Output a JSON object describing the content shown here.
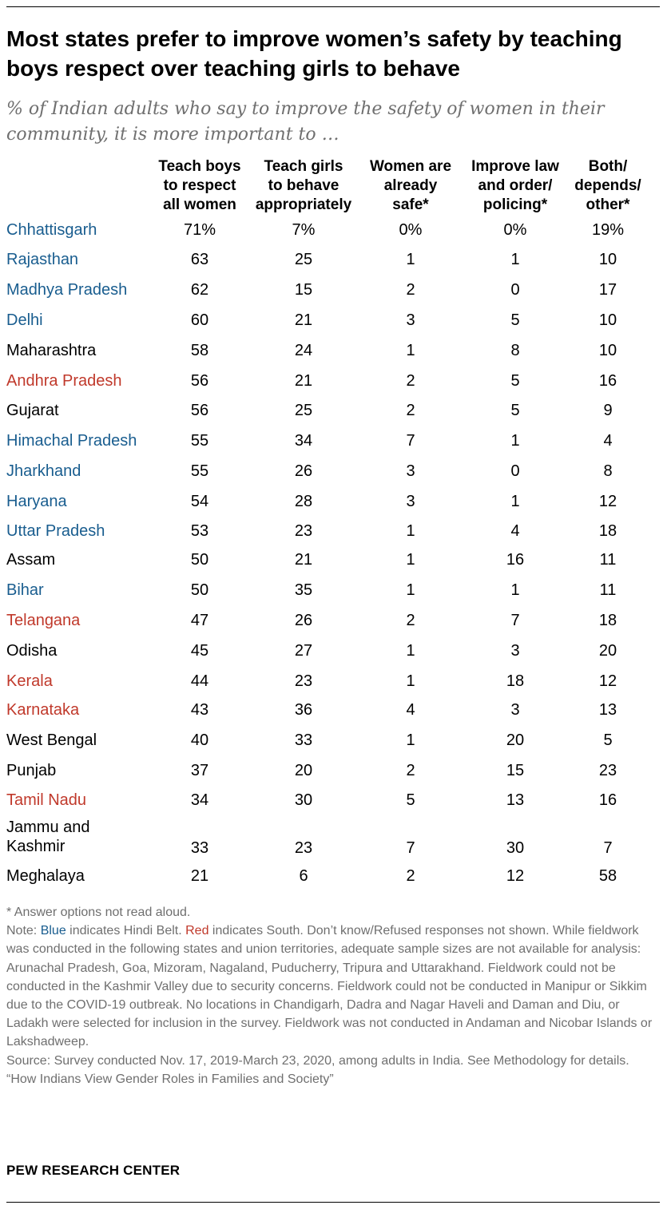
{
  "title": "Most states prefer to improve women’s safety by teaching boys respect over teaching girls to behave",
  "subtitle": "% of Indian adults who say to improve the safety of women in their community, it is more important to …",
  "colors": {
    "hindi_belt": "#195d8f",
    "south": "#c0392b",
    "other": "#000000",
    "note_text": "#6f6f6f"
  },
  "chart_data": {
    "type": "table",
    "columns": [
      "Teach boys\nto respect\nall women",
      "Teach girls\nto behave\nappropriately",
      "Women are\nalready\nsafe*",
      "Improve law\nand order/\npolicing*",
      "Both/\ndepends/\nother*"
    ],
    "rows": [
      {
        "label": "Chhattisgarh",
        "region": "hindi_belt",
        "display": [
          "71%",
          "7%",
          "0%",
          "0%",
          "19%"
        ],
        "values": [
          71,
          7,
          0,
          0,
          19
        ]
      },
      {
        "label": "Rajasthan",
        "region": "hindi_belt",
        "display": [
          "63",
          "25",
          "1",
          "1",
          "10"
        ],
        "values": [
          63,
          25,
          1,
          1,
          10
        ]
      },
      {
        "label": "Madhya Pradesh",
        "region": "hindi_belt",
        "display": [
          "62",
          "15",
          "2",
          "0",
          "17"
        ],
        "values": [
          62,
          15,
          2,
          0,
          17
        ]
      },
      {
        "label": "Delhi",
        "region": "hindi_belt",
        "display": [
          "60",
          "21",
          "3",
          "5",
          "10"
        ],
        "values": [
          60,
          21,
          3,
          5,
          10
        ]
      },
      {
        "label": "Maharashtra",
        "region": "other",
        "display": [
          "58",
          "24",
          "1",
          "8",
          "10"
        ],
        "values": [
          58,
          24,
          1,
          8,
          10
        ]
      },
      {
        "label": "Andhra Pradesh",
        "region": "south",
        "display": [
          "56",
          "21",
          "2",
          "5",
          "16"
        ],
        "values": [
          56,
          21,
          2,
          5,
          16
        ]
      },
      {
        "label": "Gujarat",
        "region": "other",
        "display": [
          "56",
          "25",
          "2",
          "5",
          "9"
        ],
        "values": [
          56,
          25,
          2,
          5,
          9
        ]
      },
      {
        "label": "Himachal Pradesh",
        "region": "hindi_belt",
        "display": [
          "55",
          "34",
          "7",
          "1",
          "4"
        ],
        "values": [
          55,
          34,
          7,
          1,
          4
        ]
      },
      {
        "label": "Jharkhand",
        "region": "hindi_belt",
        "display": [
          "55",
          "26",
          "3",
          "0",
          "8"
        ],
        "values": [
          55,
          26,
          3,
          0,
          8
        ]
      },
      {
        "label": "Haryana",
        "region": "hindi_belt",
        "display": [
          "54",
          "28",
          "3",
          "1",
          "12"
        ],
        "values": [
          54,
          28,
          3,
          1,
          12
        ]
      },
      {
        "label": "Uttar Pradesh",
        "region": "hindi_belt",
        "display": [
          "53",
          "23",
          "1",
          "4",
          "18"
        ],
        "values": [
          53,
          23,
          1,
          4,
          18
        ]
      },
      {
        "label": "Assam",
        "region": "other",
        "display": [
          "50",
          "21",
          "1",
          "16",
          "11"
        ],
        "values": [
          50,
          21,
          1,
          16,
          11
        ]
      },
      {
        "label": "Bihar",
        "region": "hindi_belt",
        "display": [
          "50",
          "35",
          "1",
          "1",
          "11"
        ],
        "values": [
          50,
          35,
          1,
          1,
          11
        ]
      },
      {
        "label": "Telangana",
        "region": "south",
        "display": [
          "47",
          "26",
          "2",
          "7",
          "18"
        ],
        "values": [
          47,
          26,
          2,
          7,
          18
        ]
      },
      {
        "label": "Odisha",
        "region": "other",
        "display": [
          "45",
          "27",
          "1",
          "3",
          "20"
        ],
        "values": [
          45,
          27,
          1,
          3,
          20
        ]
      },
      {
        "label": "Kerala",
        "region": "south",
        "display": [
          "44",
          "23",
          "1",
          "18",
          "12"
        ],
        "values": [
          44,
          23,
          1,
          18,
          12
        ]
      },
      {
        "label": "Karnataka",
        "region": "south",
        "display": [
          "43",
          "36",
          "4",
          "3",
          "13"
        ],
        "values": [
          43,
          36,
          4,
          3,
          13
        ]
      },
      {
        "label": "West Bengal",
        "region": "other",
        "display": [
          "40",
          "33",
          "1",
          "20",
          "5"
        ],
        "values": [
          40,
          33,
          1,
          20,
          5
        ]
      },
      {
        "label": "Punjab",
        "region": "other",
        "display": [
          "37",
          "20",
          "2",
          "15",
          "23"
        ],
        "values": [
          37,
          20,
          2,
          15,
          23
        ]
      },
      {
        "label": "Tamil Nadu",
        "region": "south",
        "display": [
          "34",
          "30",
          "5",
          "13",
          "16"
        ],
        "values": [
          34,
          30,
          5,
          13,
          16
        ]
      },
      {
        "label": "Jammu and\nKashmir",
        "region": "other",
        "display": [
          "33",
          "23",
          "7",
          "30",
          "7"
        ],
        "values": [
          33,
          23,
          7,
          30,
          7
        ]
      },
      {
        "label": "Meghalaya",
        "region": "other",
        "display": [
          "21",
          "6",
          "2",
          "12",
          "58"
        ],
        "values": [
          21,
          6,
          2,
          12,
          58
        ]
      }
    ]
  },
  "notes": {
    "footnote": "* Answer options not read aloud.",
    "note_prefix": "Note: ",
    "note_blue": "Blue",
    "note_mid": " indicates Hindi Belt. ",
    "note_red": "Red",
    "note_rest": " indicates South. Don’t know/Refused responses not shown. While fieldwork was conducted in the following states and union territories, adequate sample sizes are not available for analysis: Arunachal Pradesh, Goa, Mizoram, Nagaland, Puducherry, Tripura and Uttarakhand. Fieldwork could not be conducted in the Kashmir Valley due to security concerns. Fieldwork could not be conducted in Manipur or Sikkim due to the COVID-19 outbreak. No locations in Chandigarh, Dadra and Nagar Haveli and Daman and Diu, or Ladakh were selected for inclusion in the survey. Fieldwork was not conducted in Andaman and Nicobar Islands or Lakshadweep.",
    "source": "Source: Survey conducted Nov. 17, 2019-March 23, 2020, among adults in India. See Methodology for details.",
    "report": "“How Indians View Gender Roles in Families and Society”"
  },
  "branding": "PEW RESEARCH CENTER"
}
